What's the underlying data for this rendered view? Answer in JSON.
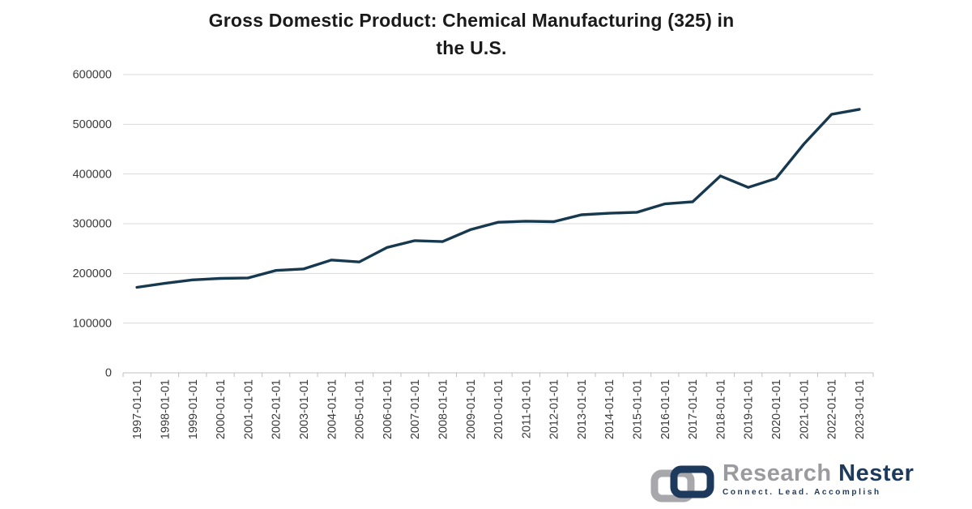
{
  "title": {
    "line1": "Gross Domestic Product: Chemical Manufacturing (325) in",
    "line2": "the U.S."
  },
  "chart_data": {
    "type": "line",
    "title": "Gross Domestic Product: Chemical Manufacturing (325) in the U.S.",
    "x": [
      "1997-01-01",
      "1998-01-01",
      "1999-01-01",
      "2000-01-01",
      "2001-01-01",
      "2002-01-01",
      "2003-01-01",
      "2004-01-01",
      "2005-01-01",
      "2006-01-01",
      "2007-01-01",
      "2008-01-01",
      "2009-01-01",
      "2010-01-01",
      "2011-01-01",
      "2012-01-01",
      "2013-01-01",
      "2014-01-01",
      "2015-01-01",
      "2016-01-01",
      "2017-01-01",
      "2018-01-01",
      "2019-01-01",
      "2020-01-01",
      "2021-01-01",
      "2022-01-01",
      "2023-01-01"
    ],
    "series": [
      {
        "name": "Gross Domestic Product: Chemical Manufacturing (325)",
        "color": "#17394f",
        "values": [
          172000,
          180000,
          187000,
          190000,
          191000,
          206000,
          209000,
          227000,
          223000,
          252000,
          266000,
          264000,
          288000,
          303000,
          305000,
          304000,
          318000,
          321000,
          323000,
          340000,
          344000,
          396000,
          373000,
          391000,
          460000,
          520000,
          530000
        ]
      }
    ],
    "xlabel": "",
    "ylabel": "",
    "ylim": [
      0,
      600000
    ],
    "yticks": [
      0,
      100000,
      200000,
      300000,
      400000,
      500000,
      600000
    ],
    "grid": "horizontal",
    "legend": "none",
    "x_tick_rotation": 90
  },
  "branding": {
    "name_primary": "Research",
    "name_secondary": "Nester",
    "tagline": "Connect. Lead. Accomplish"
  },
  "colors": {
    "background": "#ffffff",
    "line": "#17394f",
    "gridline": "#d9d9d9",
    "axis": "#bfbfbf",
    "tick_label": "#3a3a3a",
    "title_text": "#1a1a1a",
    "logo_gray": "#a8a8ac",
    "logo_navy": "#1d3a5c"
  }
}
